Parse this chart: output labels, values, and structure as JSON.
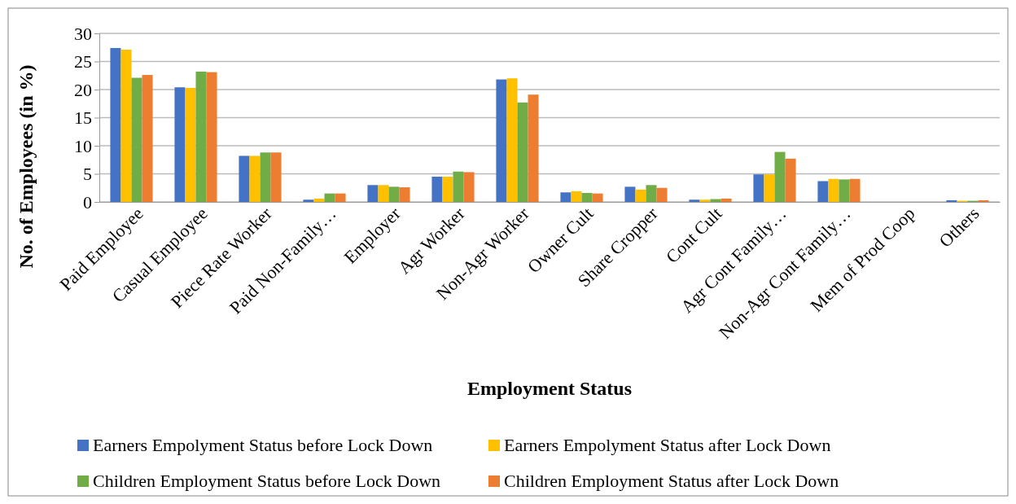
{
  "chart_data": {
    "type": "bar",
    "xlabel": "Employment Status",
    "ylabel": "No. of Employees (in %)",
    "categories": [
      "Paid Employee",
      "Casual Employee",
      "Piece Rate Worker",
      "Paid Non-Family…",
      "Employer",
      "Agr Worker",
      "Non-Agr Worker",
      "Owner Cult",
      "Share Cropper",
      "Cont Cult",
      "Agr Cont Family…",
      "Non-Agr Cont Family…",
      "Mem of Prod Coop",
      "Others"
    ],
    "series": [
      {
        "name": "Earners Empolyment  Status before Lock Down",
        "color": "#4472c4",
        "values": [
          27.4,
          20.4,
          8.2,
          0.4,
          3.0,
          4.5,
          21.8,
          1.7,
          2.7,
          0.4,
          4.9,
          3.7,
          0,
          0.3
        ]
      },
      {
        "name": "Earners Empolyment  Status after  Lock Down",
        "color": "#ffc000",
        "values": [
          27.1,
          20.3,
          8.2,
          0.6,
          3.0,
          4.5,
          22.0,
          1.9,
          2.2,
          0.4,
          4.9,
          4.1,
          0,
          0.2
        ]
      },
      {
        "name": "Children Employment Status before Lock Down",
        "color": "#70ad47",
        "values": [
          22.1,
          23.2,
          8.8,
          1.5,
          2.7,
          5.4,
          17.7,
          1.6,
          3.0,
          0.5,
          8.9,
          4.0,
          0,
          0.2
        ]
      },
      {
        "name": "Children Employment Status after  Lock Down",
        "color": "#ed7d31",
        "values": [
          22.6,
          23.1,
          8.8,
          1.5,
          2.6,
          5.3,
          19.1,
          1.5,
          2.5,
          0.6,
          7.7,
          4.1,
          0,
          0.3
        ]
      }
    ],
    "ylim": [
      0,
      30
    ],
    "yticks": [
      0,
      5,
      10,
      15,
      20,
      25,
      30
    ],
    "grid": "y",
    "legend": "bottom"
  }
}
